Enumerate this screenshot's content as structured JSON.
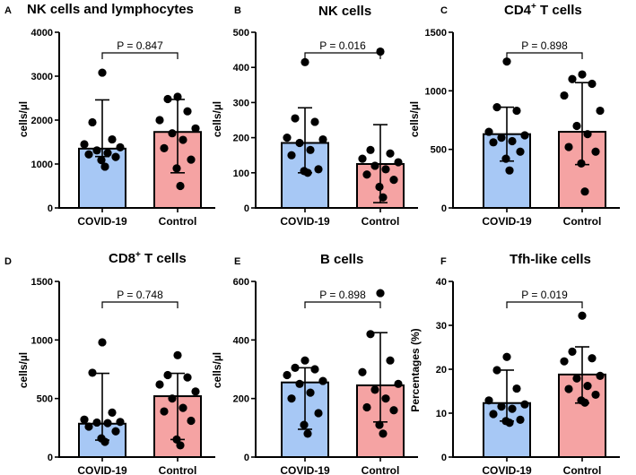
{
  "figure": {
    "bar_colors": {
      "COVID-19": "#a7c8f5",
      "Control": "#f5a3a3"
    },
    "axis_color": "#000000"
  },
  "chart_data": [
    {
      "type": "bar",
      "panel_label": "A",
      "title": "NK cells and lymphocytes",
      "title_base": "NK cells and lymphocytes",
      "title_sup": "",
      "title_tail": "",
      "ylabel": "cells/µl",
      "ylim": [
        0,
        4000
      ],
      "yticks": [
        0,
        1000,
        2000,
        3000,
        4000
      ],
      "categories": [
        "COVID-19",
        "Control"
      ],
      "values": [
        1350,
        1730
      ],
      "error_low": [
        1170,
        800
      ],
      "error_high": [
        2460,
        2470
      ],
      "points": [
        [
          3080,
          1950,
          1560,
          1450,
          1380,
          1310,
          1250,
          1220,
          1160,
          1090,
          940
        ],
        [
          2530,
          2480,
          2200,
          2000,
          1810,
          1700,
          1550,
          1360,
          1100,
          900,
          500
        ]
      ],
      "p_value": "P = 0.847"
    },
    {
      "type": "bar",
      "panel_label": "B",
      "title": "NK cells",
      "title_base": "NK cells",
      "title_sup": "",
      "title_tail": "",
      "ylabel": "cells/µl",
      "ylim": [
        0,
        500
      ],
      "yticks": [
        0,
        100,
        200,
        300,
        400,
        500
      ],
      "categories": [
        "COVID-19",
        "Control"
      ],
      "values": [
        185,
        125
      ],
      "error_low": [
        100,
        15
      ],
      "error_high": [
        285,
        237
      ],
      "points": [
        [
          415,
          255,
          245,
          200,
          195,
          185,
          165,
          150,
          110,
          105,
          100
        ],
        [
          445,
          165,
          155,
          140,
          130,
          120,
          110,
          95,
          80,
          60,
          30
        ]
      ],
      "p_value": "P = 0.016"
    },
    {
      "type": "bar",
      "panel_label": "C",
      "title": "CD4+ T cells",
      "title_base": "CD4",
      "title_sup": "+",
      "title_tail": " T cells",
      "ylabel": "cells/µl",
      "ylim": [
        0,
        1500
      ],
      "yticks": [
        0,
        500,
        1000,
        1500
      ],
      "categories": [
        "COVID-19",
        "Control"
      ],
      "values": [
        630,
        650
      ],
      "error_low": [
        400,
        370
      ],
      "error_high": [
        860,
        1070
      ],
      "points": [
        [
          1250,
          860,
          830,
          650,
          620,
          600,
          570,
          560,
          480,
          420,
          320
        ],
        [
          1140,
          1100,
          1060,
          960,
          830,
          700,
          630,
          520,
          480,
          380,
          140
        ]
      ],
      "p_value": "P = 0.898"
    },
    {
      "type": "bar",
      "panel_label": "D",
      "title": "CD8+ T cells",
      "title_base": "CD8",
      "title_sup": "+",
      "title_tail": " T cells",
      "ylabel": "cells/µl",
      "ylim": [
        0,
        1500
      ],
      "yticks": [
        0,
        500,
        1000,
        1500
      ],
      "categories": [
        "COVID-19",
        "Control"
      ],
      "values": [
        285,
        520
      ],
      "error_low": [
        145,
        150
      ],
      "error_high": [
        715,
        715
      ],
      "points": [
        [
          980,
          720,
          380,
          320,
          300,
          295,
          290,
          260,
          220,
          160,
          130
        ],
        [
          870,
          700,
          680,
          620,
          560,
          500,
          420,
          390,
          310,
          150,
          100
        ]
      ],
      "p_value": "P = 0.748"
    },
    {
      "type": "bar",
      "panel_label": "E",
      "title": "B cells",
      "title_base": "B cells",
      "title_sup": "",
      "title_tail": "",
      "ylabel": "cells/µl",
      "ylim": [
        0,
        600
      ],
      "yticks": [
        0,
        200,
        400,
        600
      ],
      "categories": [
        "COVID-19",
        "Control"
      ],
      "values": [
        255,
        245
      ],
      "error_low": [
        95,
        120
      ],
      "error_high": [
        305,
        425
      ],
      "points": [
        [
          330,
          305,
          300,
          280,
          260,
          250,
          220,
          200,
          150,
          110,
          80
        ],
        [
          560,
          420,
          330,
          290,
          250,
          230,
          200,
          170,
          160,
          110,
          80
        ]
      ],
      "p_value": "P = 0.898"
    },
    {
      "type": "bar",
      "panel_label": "F",
      "title": "Tfh-like cells",
      "title_base": "Tfh-like cells",
      "title_sup": "",
      "title_tail": "",
      "ylabel": "Percentages (%)",
      "ylim": [
        0,
        40
      ],
      "yticks": [
        0,
        10,
        20,
        30,
        40
      ],
      "categories": [
        "COVID-19",
        "Control"
      ],
      "values": [
        12.3,
        18.8
      ],
      "error_low": [
        8.2,
        12.3
      ],
      "error_high": [
        19.8,
        25.1
      ],
      "points": [
        [
          22.8,
          19.8,
          15.6,
          12.9,
          12.0,
          11.5,
          11.0,
          9.8,
          8.5,
          8.2,
          7.8
        ],
        [
          32.2,
          24.0,
          22.5,
          21.8,
          18.5,
          17.9,
          16.2,
          15.5,
          14.2,
          12.9,
          12.4
        ]
      ],
      "p_value": "P = 0.019"
    }
  ]
}
